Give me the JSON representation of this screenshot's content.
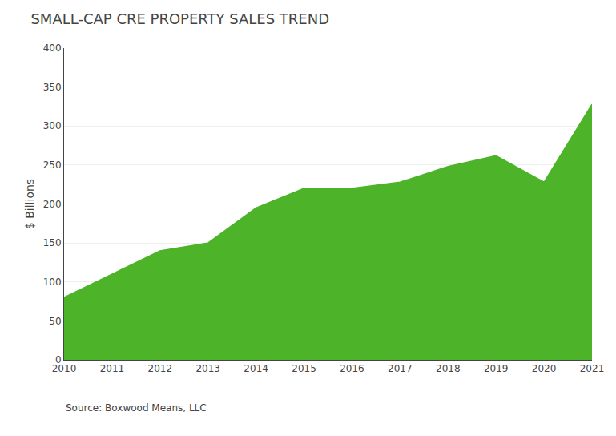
{
  "chart_data": {
    "type": "area",
    "title": "SMALL-CAP CRE PROPERTY SALES TREND",
    "x": [
      2010,
      2011,
      2012,
      2013,
      2014,
      2015,
      2016,
      2017,
      2018,
      2019,
      2020,
      2021
    ],
    "values": [
      80,
      110,
      140,
      150,
      195,
      220,
      220,
      228,
      248,
      262,
      228,
      328
    ],
    "color": "#4db329",
    "xlim": [
      2010,
      2021
    ],
    "xticks": [
      2010,
      2011,
      2012,
      2013,
      2014,
      2015,
      2016,
      2017,
      2018,
      2019,
      2020,
      2021
    ],
    "ylim": [
      0,
      400
    ],
    "yticks": [
      0,
      50,
      100,
      150,
      200,
      250,
      300,
      350,
      400
    ],
    "ylabel": "$ Billions",
    "grid": true,
    "annotations": [
      "Source: Boxwood Means, LLC"
    ]
  }
}
